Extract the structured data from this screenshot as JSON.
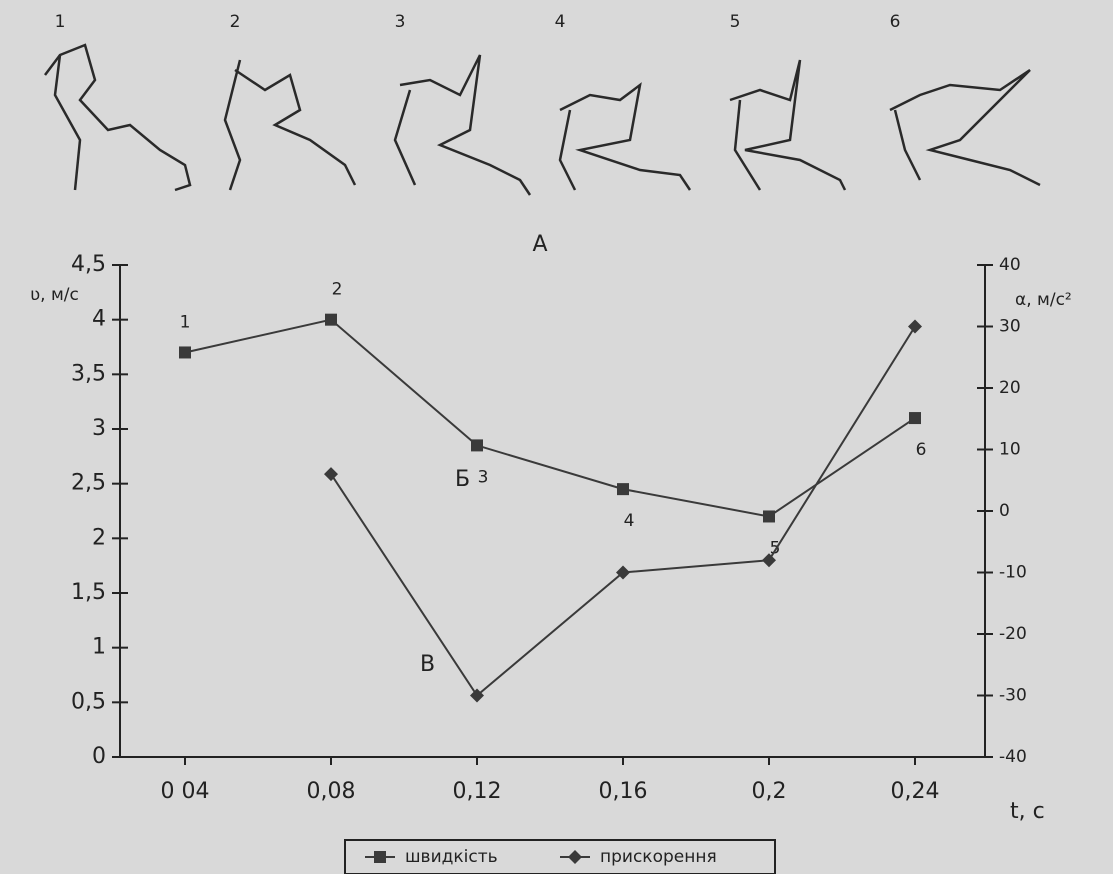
{
  "chart_data": {
    "type": "line",
    "title": "А",
    "figure_labels": [
      "1",
      "2",
      "3",
      "4",
      "5",
      "6"
    ],
    "x_label": "t, c",
    "y_label": "ʋ, м/с",
    "y2_label": "α, м/с²",
    "categories": [
      "0 04",
      "0,08",
      "0,12",
      "0,16",
      "0,2",
      "0,24"
    ],
    "series": [
      {
        "name": "швидкість",
        "color": "#3a3a3a",
        "marker": "square",
        "values": [
          3.7,
          4.0,
          2.85,
          2.45,
          2.2,
          3.1
        ],
        "point_labels": [
          "1",
          "2",
          "3",
          "4",
          "5",
          "6"
        ]
      },
      {
        "name": "прискорення",
        "color": "#3a3a3a",
        "marker": "diamond",
        "axis": "y2",
        "values": [
          null,
          6,
          -30,
          -10,
          -8,
          30
        ]
      }
    ],
    "annotations": [
      "Б",
      "В"
    ],
    "ylim": [
      0,
      4.5
    ],
    "yticks": [
      {
        "value": 0,
        "label": "0"
      },
      {
        "value": 0.5,
        "label": "0,5"
      },
      {
        "value": 1,
        "label": "1"
      },
      {
        "value": 1.5,
        "label": "1,5"
      },
      {
        "value": 2,
        "label": "2"
      },
      {
        "value": 2.5,
        "label": "2,5"
      },
      {
        "value": 3,
        "label": "3"
      },
      {
        "value": 3.5,
        "label": "3,5"
      },
      {
        "value": 4,
        "label": "4"
      },
      {
        "value": 4.5,
        "label": "4,5"
      }
    ],
    "y2lim": [
      -40,
      40
    ],
    "y2ticks": [
      -40,
      -30,
      -20,
      -10,
      0,
      10,
      20,
      30,
      40
    ]
  }
}
